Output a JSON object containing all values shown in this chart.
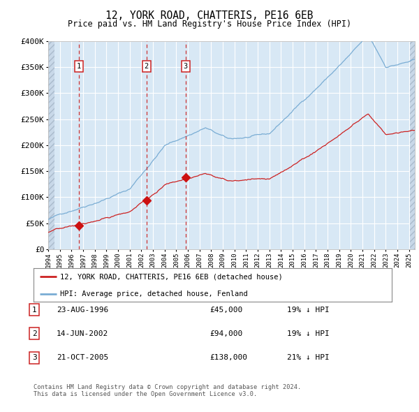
{
  "title": "12, YORK ROAD, CHATTERIS, PE16 6EB",
  "subtitle": "Price paid vs. HM Land Registry's House Price Index (HPI)",
  "legend_line1": "12, YORK ROAD, CHATTERIS, PE16 6EB (detached house)",
  "legend_line2": "HPI: Average price, detached house, Fenland",
  "footer1": "Contains HM Land Registry data © Crown copyright and database right 2024.",
  "footer2": "This data is licensed under the Open Government Licence v3.0.",
  "transactions": [
    {
      "num": 1,
      "date": "23-AUG-1996",
      "price": 45000,
      "pct": "19%",
      "direction": "↓"
    },
    {
      "num": 2,
      "date": "14-JUN-2002",
      "price": 94000,
      "pct": "19%",
      "direction": "↓"
    },
    {
      "num": 3,
      "date": "21-OCT-2005",
      "price": 138000,
      "pct": "21%",
      "direction": "↓"
    }
  ],
  "transaction_dates_decimal": [
    1996.644,
    2002.452,
    2005.804
  ],
  "transaction_prices": [
    45000,
    94000,
    138000
  ],
  "hpi_color": "#7aadd4",
  "price_color": "#cc2222",
  "dashed_line_color": "#cc3333",
  "marker_color": "#cc1111",
  "background_chart": "#d8e8f5",
  "grid_color": "#ffffff",
  "ylim": [
    0,
    400000
  ],
  "yticks": [
    0,
    50000,
    100000,
    150000,
    200000,
    250000,
    300000,
    350000,
    400000
  ],
  "xstart": 1994.0,
  "xend": 2025.5
}
